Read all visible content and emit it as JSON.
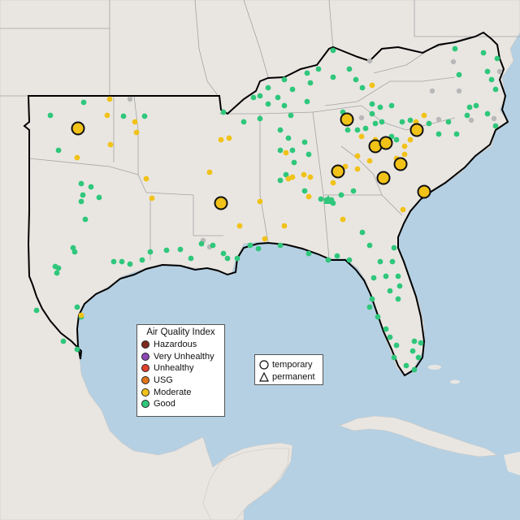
{
  "legend": {
    "title": "Air Quality Index",
    "items": [
      {
        "label": "Hazardous",
        "color": "#7e2a1f"
      },
      {
        "label": "Very Unhealthy",
        "color": "#8f46b5"
      },
      {
        "label": "Unhealthy",
        "color": "#e0402c"
      },
      {
        "label": "USG",
        "color": "#e0761b"
      },
      {
        "label": "Moderate",
        "color": "#f1c218"
      },
      {
        "label": "Good",
        "color": "#2fc77b"
      }
    ]
  },
  "shape_legend": {
    "items": [
      {
        "label": "temporary",
        "icon": "circle-outline-icon"
      },
      {
        "label": "permanent",
        "icon": "triangle-outline-icon"
      }
    ]
  },
  "colors": {
    "ocean": "#b5d0e3",
    "land": "#e9e6e2",
    "state_border": "#9a9a9a",
    "region_outline": "#000000",
    "good": "#2fc77b",
    "moderate": "#f1c218",
    "no_data": "#b8b8b8"
  }
}
